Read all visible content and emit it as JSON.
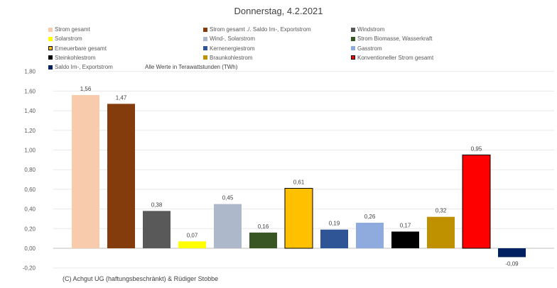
{
  "chart_data": {
    "type": "bar",
    "title": "Donnerstag, 4.2.2021",
    "note": "Alle Werte in Terawattstunden (TWh)",
    "credit": "(C) Achgut UG (haftungsbeschränkt) & Rüdiger Stobbe",
    "ylim": [
      -0.2,
      1.8
    ],
    "yticks": [
      "-0,20",
      "0,00",
      "0,20",
      "0,40",
      "0,60",
      "0,80",
      "1,00",
      "1,20",
      "1,40",
      "1,60",
      "1,80"
    ],
    "categories": [
      "Strom gesamt",
      "Strom gesamt ./. Saldo Im-, Exportstrom",
      "Windstrom",
      "Solarstrom",
      "Wind-, Solarstrom",
      "Strom Biomasse, Wasserkraft",
      "Erneuerbare gesamt",
      "Kernenergiestrom",
      "Gasstrom",
      "Steinkohlestrom",
      "Braunkohlestrom",
      "Konventioneller Strom gesamt",
      "Saldo Im-, Exportstrom"
    ],
    "values": [
      1.56,
      1.47,
      0.38,
      0.07,
      0.45,
      0.16,
      0.61,
      0.19,
      0.26,
      0.17,
      0.32,
      0.95,
      -0.09
    ],
    "labels": [
      "1,56",
      "1,47",
      "0,38",
      "0,07",
      "0,45",
      "0,16",
      "0,61",
      "0,19",
      "0,26",
      "0,17",
      "0,32",
      "0,95",
      "-0,09"
    ],
    "colors": [
      "#f8cbad",
      "#843c0c",
      "#595959",
      "#ffff00",
      "#adb9ca",
      "#375623",
      "#ffc000",
      "#2f5597",
      "#8faadc",
      "#000000",
      "#bf9000",
      "#ff0000",
      "#002060"
    ],
    "bordered": [
      false,
      false,
      false,
      false,
      false,
      false,
      true,
      false,
      false,
      false,
      false,
      true,
      false
    ],
    "legend_placement": "top"
  }
}
